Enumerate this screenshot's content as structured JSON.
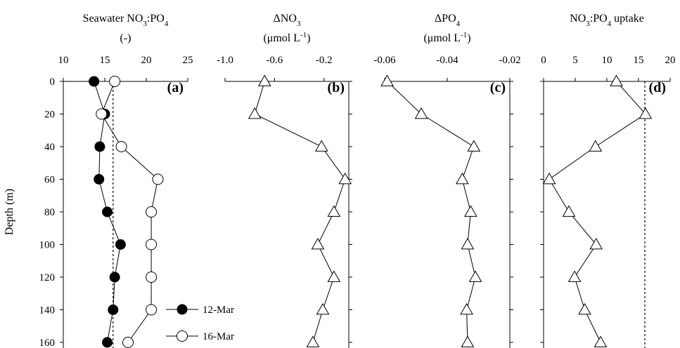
{
  "chart_data": [
    {
      "type": "line",
      "panel": "a",
      "title_parts": [
        {
          "t": "Seawater NO",
          "s": "n"
        },
        {
          "t": "3",
          "s": "sub"
        },
        {
          "t": ":PO",
          "s": "n"
        },
        {
          "t": "4",
          "s": "sub"
        }
      ],
      "title_line2": "(-)",
      "panel_label": "(a)",
      "ylabel": "Depth (m)",
      "xlim": [
        10,
        25
      ],
      "xticks": [
        10,
        15,
        20,
        25
      ],
      "ylim": [
        0,
        160
      ],
      "yticks": [
        0,
        20,
        40,
        60,
        80,
        100,
        120,
        140,
        160
      ],
      "yaxis_side": "left",
      "reference_line": {
        "x": 16,
        "style": "dashed"
      },
      "series": [
        {
          "name": "12-Mar",
          "marker": "filled-circle",
          "x": [
            13.7,
            15.0,
            14.4,
            14.3,
            15.3,
            16.9,
            16.2,
            16.0,
            15.3
          ],
          "y": [
            0,
            20,
            40,
            60,
            80,
            100,
            120,
            140,
            160
          ]
        },
        {
          "name": "16-Mar",
          "marker": "open-circle",
          "x": [
            16.2,
            14.6,
            17.0,
            21.4,
            20.6,
            20.6,
            20.6,
            20.6,
            17.8
          ],
          "y": [
            0,
            20,
            40,
            60,
            80,
            100,
            120,
            140,
            160
          ]
        }
      ],
      "legend": [
        {
          "label": "12-Mar",
          "marker": "filled-circle"
        },
        {
          "label": "16-Mar",
          "marker": "open-circle"
        }
      ]
    },
    {
      "type": "line",
      "panel": "b",
      "title_parts": [
        {
          "t": "ΔNO",
          "s": "n"
        },
        {
          "t": "3",
          "s": "sub"
        }
      ],
      "title_line2_parts": [
        {
          "t": "(μmol L",
          "s": "n"
        },
        {
          "t": "-1",
          "s": "sup"
        },
        {
          "t": ")",
          "s": "n"
        }
      ],
      "panel_label": "(b)",
      "xlim": [
        -1.0,
        0.0
      ],
      "xticks": [
        -1.0,
        -0.6,
        -0.2
      ],
      "xtick_labels": [
        "-1.0",
        "-0.6",
        "-0.2"
      ],
      "ylim": [
        0,
        160
      ],
      "yaxis_side": "right",
      "series": [
        {
          "marker": "open-triangle",
          "x": [
            -0.68,
            -0.76,
            -0.22,
            -0.03,
            -0.12,
            -0.25,
            -0.12,
            -0.21,
            -0.29
          ],
          "y": [
            0,
            20,
            40,
            60,
            80,
            100,
            120,
            140,
            160
          ]
        }
      ]
    },
    {
      "type": "line",
      "panel": "c",
      "title_parts": [
        {
          "t": "ΔPO",
          "s": "n"
        },
        {
          "t": "4",
          "s": "sub"
        }
      ],
      "title_line2_parts": [
        {
          "t": "(μmol L",
          "s": "n"
        },
        {
          "t": "-1",
          "s": "sup"
        },
        {
          "t": ")",
          "s": "n"
        }
      ],
      "panel_label": "(c)",
      "xlim": [
        -0.06,
        -0.02
      ],
      "xticks": [
        -0.06,
        -0.04,
        -0.02
      ],
      "xtick_labels": [
        "-0.06",
        "-0.04",
        "-0.02"
      ],
      "ylim": [
        0,
        160
      ],
      "yaxis_side": "right",
      "series": [
        {
          "marker": "open-triangle",
          "x": [
            -0.0592,
            -0.0483,
            -0.0315,
            -0.0352,
            -0.0325,
            -0.0335,
            -0.031,
            -0.0338,
            -0.0335
          ],
          "y": [
            0,
            20,
            40,
            60,
            80,
            100,
            120,
            140,
            160
          ]
        }
      ]
    },
    {
      "type": "line",
      "panel": "d",
      "title_parts": [
        {
          "t": "NO",
          "s": "n"
        },
        {
          "t": "3",
          "s": "sub"
        },
        {
          "t": ":PO",
          "s": "n"
        },
        {
          "t": "4",
          "s": "sub"
        },
        {
          "t": " uptake",
          "s": "n"
        }
      ],
      "panel_label": "(d)",
      "xlim": [
        0,
        20
      ],
      "xticks": [
        0,
        5,
        10,
        15,
        20
      ],
      "ylim": [
        0,
        160
      ],
      "yaxis_side": "left",
      "reference_line": {
        "x": 16,
        "style": "dashed"
      },
      "series": [
        {
          "marker": "open-triangle",
          "x": [
            11.5,
            16.1,
            8.2,
            0.9,
            4.0,
            8.3,
            4.9,
            6.5,
            9.0
          ],
          "y": [
            0,
            20,
            40,
            60,
            80,
            100,
            120,
            140,
            160
          ]
        }
      ]
    }
  ]
}
